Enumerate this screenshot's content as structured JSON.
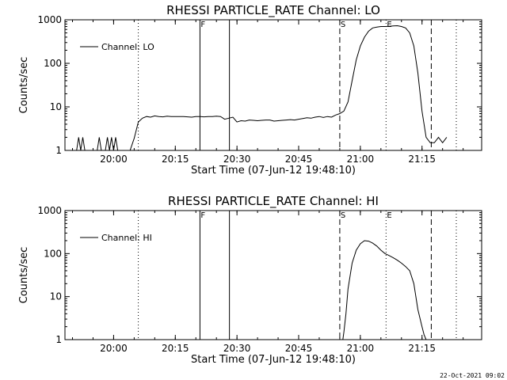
{
  "footer": {
    "timestamp": "22-Oct-2021 09:02"
  },
  "chart_data": [
    {
      "type": "line",
      "title": "RHESSI PARTICLE_RATE Channel: LO",
      "xlabel": "Start Time (07-Jun-12 19:48:10)",
      "ylabel": "Counts/sec",
      "yscale": "log",
      "ylim": [
        1,
        1000
      ],
      "xlim": [
        "19:48:10",
        "21:29:30"
      ],
      "x_tick_labels": [
        "20:00",
        "20:15",
        "20:30",
        "20:45",
        "21:00",
        "21:15"
      ],
      "y_tick_labels": [
        "1",
        "10",
        "100",
        "1000"
      ],
      "legend": {
        "position": "top-left",
        "entries": [
          "Channel: LO"
        ]
      },
      "series": [
        {
          "name": "Channel: LO",
          "x": [
            "19:51",
            "19:51:30",
            "19:52",
            "19:52:30",
            "19:53",
            "19:56",
            "19:56:30",
            "19:57",
            "19:58",
            "19:58:30",
            "19:59",
            "19:59:30",
            "20:00",
            "20:00:30",
            "20:01",
            "20:02",
            "20:03",
            "20:04",
            "20:05",
            "20:06",
            "20:07",
            "20:08",
            "20:09",
            "20:10",
            "20:11",
            "20:12",
            "20:13",
            "20:14",
            "20:15",
            "20:16",
            "20:17",
            "20:18",
            "20:19",
            "20:20",
            "20:21",
            "20:22",
            "20:23",
            "20:24",
            "20:25",
            "20:26",
            "20:27",
            "20:28",
            "20:29",
            "20:30",
            "20:31",
            "20:32",
            "20:33",
            "20:34",
            "20:35",
            "20:36",
            "20:37",
            "20:38",
            "20:39",
            "20:40",
            "20:41",
            "20:42",
            "20:43",
            "20:44",
            "20:45",
            "20:46",
            "20:47",
            "20:48",
            "20:49",
            "20:50",
            "20:51",
            "20:52",
            "20:53",
            "20:54",
            "20:55",
            "20:56",
            "20:57",
            "20:58",
            "20:59",
            "21:00",
            "21:01",
            "21:02",
            "21:03",
            "21:04",
            "21:05",
            "21:06",
            "21:07",
            "21:08",
            "21:09",
            "21:10",
            "21:11",
            "21:12",
            "21:13",
            "21:14",
            "21:15",
            "21:16",
            "21:17",
            "21:18",
            "21:19",
            "21:20",
            "21:21"
          ],
          "y": [
            1,
            2,
            1,
            2,
            1,
            1,
            2,
            1,
            1,
            2,
            1,
            2,
            1,
            2,
            1,
            1,
            1,
            1,
            1.9,
            4.5,
            5.5,
            6,
            5.8,
            6.2,
            6,
            5.9,
            6.1,
            6,
            6,
            6,
            6,
            5.9,
            5.8,
            6,
            6,
            5.9,
            6,
            6,
            6.1,
            6,
            5.2,
            5.5,
            5.8,
            4.5,
            4.8,
            4.7,
            5.0,
            4.9,
            4.8,
            4.9,
            5.0,
            5.0,
            4.7,
            4.8,
            4.9,
            5.0,
            5.1,
            5.0,
            5.2,
            5.4,
            5.6,
            5.5,
            5.8,
            6.0,
            5.7,
            6.0,
            5.8,
            6.5,
            7.0,
            8.0,
            13,
            40,
            120,
            250,
            400,
            550,
            650,
            680,
            700,
            700,
            710,
            720,
            730,
            700,
            650,
            500,
            250,
            60,
            8,
            2,
            1.5,
            1.5,
            2,
            1.5,
            2
          ]
        }
      ],
      "markers": [
        {
          "time": "20:06",
          "style": "dotted",
          "label": ""
        },
        {
          "time": "20:21",
          "style": "solid",
          "label": "F"
        },
        {
          "time": "20:28:10",
          "style": "solid",
          "label": ""
        },
        {
          "time": "20:55",
          "style": "dashed",
          "label": "S"
        },
        {
          "time": "21:06:15",
          "style": "dotted",
          "label": "E"
        },
        {
          "time": "21:17:15",
          "style": "dashed",
          "label": ""
        },
        {
          "time": "21:23:20",
          "style": "dotted",
          "label": ""
        }
      ]
    },
    {
      "type": "line",
      "title": "RHESSI PARTICLE_RATE Channel: HI",
      "xlabel": "Start Time (07-Jun-12 19:48:10)",
      "ylabel": "Counts/sec",
      "yscale": "log",
      "ylim": [
        1,
        1000
      ],
      "xlim": [
        "19:48:10",
        "21:29:30"
      ],
      "x_tick_labels": [
        "20:00",
        "20:15",
        "20:30",
        "20:45",
        "21:00",
        "21:15"
      ],
      "y_tick_labels": [
        "1",
        "10",
        "100",
        "1000"
      ],
      "legend": {
        "position": "top-left",
        "entries": [
          "Channel: HI"
        ]
      },
      "series": [
        {
          "name": "Channel: HI",
          "x": [
            "20:55:45",
            "20:56",
            "20:56:30",
            "20:57",
            "20:58",
            "20:59",
            "21:00",
            "21:01",
            "21:02",
            "21:03",
            "21:04",
            "21:05",
            "21:06",
            "21:07",
            "21:08",
            "21:09",
            "21:10",
            "21:11",
            "21:12",
            "21:13",
            "21:14",
            "21:15",
            "21:15:30",
            "21:16"
          ],
          "y": [
            1,
            1.5,
            4,
            15,
            60,
            120,
            170,
            200,
            195,
            175,
            150,
            120,
            100,
            90,
            80,
            70,
            60,
            50,
            40,
            20,
            5,
            2,
            1.3,
            1
          ]
        }
      ],
      "markers": [
        {
          "time": "20:06",
          "style": "dotted",
          "label": ""
        },
        {
          "time": "20:21",
          "style": "solid",
          "label": "F"
        },
        {
          "time": "20:28:10",
          "style": "solid",
          "label": ""
        },
        {
          "time": "20:55",
          "style": "dashed",
          "label": "S"
        },
        {
          "time": "21:06:15",
          "style": "dotted",
          "label": "E"
        },
        {
          "time": "21:17:15",
          "style": "dashed",
          "label": ""
        },
        {
          "time": "21:23:20",
          "style": "dotted",
          "label": ""
        }
      ]
    }
  ]
}
